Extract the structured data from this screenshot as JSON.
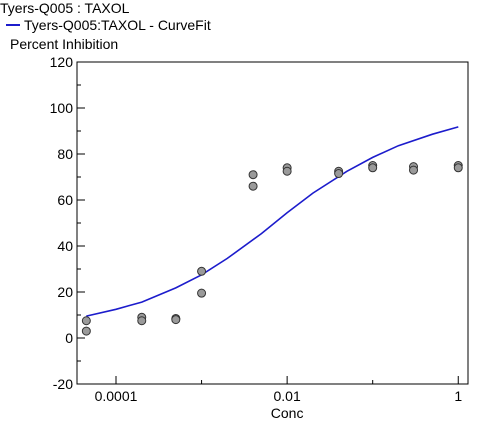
{
  "chart_data": {
    "type": "scatter",
    "title": "Tyers-Q005  : TAXOL",
    "ylabel": "Percent Inhibition",
    "xlabel": "Conc",
    "x_scale": "log",
    "xlim": [
      3.5e-05,
      1.3
    ],
    "ylim": [
      -20,
      120
    ],
    "y_ticks": [
      -20,
      0,
      20,
      40,
      60,
      80,
      100,
      120
    ],
    "x_ticks": [
      {
        "value": 0.0001,
        "label": "0.0001"
      },
      {
        "value": 0.01,
        "label": "0.01"
      },
      {
        "value": 1,
        "label": "1"
      }
    ],
    "grid": false,
    "series": [
      {
        "name": "Tyers-Q005:TAXOL - CurveFit",
        "kind": "line",
        "color": "#1c1ccc",
        "x": [
          4.5e-05,
          0.0001,
          0.0002,
          0.0005,
          0.001,
          0.002,
          0.005,
          0.01,
          0.02,
          0.05,
          0.1,
          0.2,
          0.5,
          1.0
        ],
        "y": [
          9.5,
          12.5,
          15.6,
          21.8,
          27.5,
          34.6,
          45.4,
          54.5,
          63.0,
          72.5,
          78.5,
          83.6,
          88.6,
          91.8
        ]
      },
      {
        "kind": "points",
        "marker_fill": "#9a9a9a",
        "marker_edge": "#333333",
        "x": [
          4.5e-05,
          4.5e-05,
          0.0002,
          0.0002,
          0.0005,
          0.0005,
          0.001,
          0.001,
          0.004,
          0.004,
          0.01,
          0.01,
          0.04,
          0.04,
          0.1,
          0.1,
          0.3,
          0.3,
          1.0,
          1.0
        ],
        "y": [
          7.5,
          3.0,
          9.0,
          7.5,
          8.5,
          8.0,
          29.0,
          19.5,
          71.0,
          66.0,
          74.0,
          72.5,
          72.5,
          71.5,
          75.0,
          74.0,
          74.5,
          73.0,
          75.0,
          74.0
        ]
      }
    ]
  }
}
